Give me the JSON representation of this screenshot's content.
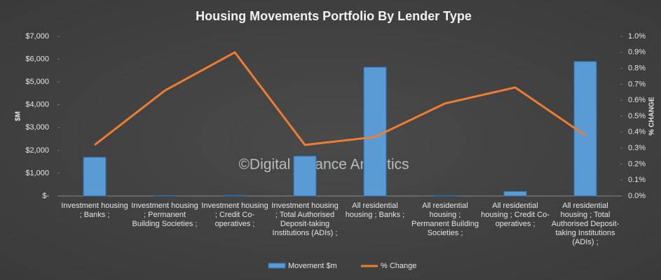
{
  "chart_data": {
    "type": "bar-line",
    "title": "Housing  Movements  Portfolio  By  Lender  Type",
    "watermark": "©Digital Finance Analytics",
    "y_label": "$M",
    "y2_label": "% CHANGE",
    "categories": [
      "Investment housing ; Banks ;",
      "Investment housing ; Permanent Building Societies ;",
      "Investment housing ; Credit Co-operatives ;",
      "Investment housing ; Total Authorised Deposit-taking Institutions (ADIs) ;",
      "All residential housing ; Banks ;",
      "All residential housing ; Permanent Building Societies ;",
      "All residential housing ; Credit Co-operatives ;",
      "All residential housing ; Total Authorised Deposit-taking Institutions (ADIs) ;"
    ],
    "series": [
      {
        "name": "Movement $m",
        "type": "bar",
        "color": "#5b9bd5",
        "values": [
          1700,
          20,
          30,
          1750,
          5650,
          20,
          200,
          5900
        ]
      },
      {
        "name": "% Change",
        "type": "line",
        "axis": "y2",
        "color": "#ed7d31",
        "values": [
          0.32,
          0.66,
          0.9,
          0.32,
          0.37,
          0.58,
          0.68,
          0.38
        ]
      }
    ],
    "ylim": [
      0,
      7000
    ],
    "yticks": [
      {
        "value": 0,
        "label": "$-"
      },
      {
        "value": 1000,
        "label": "$1,000"
      },
      {
        "value": 2000,
        "label": "$2,000"
      },
      {
        "value": 3000,
        "label": "$3,000"
      },
      {
        "value": 4000,
        "label": "$4,000"
      },
      {
        "value": 5000,
        "label": "$5,000"
      },
      {
        "value": 6000,
        "label": "$6,000"
      },
      {
        "value": 7000,
        "label": "$7,000"
      }
    ],
    "y2lim": [
      0,
      1
    ],
    "y2ticks": [
      {
        "value": 0,
        "label": "0.0%"
      },
      {
        "value": 0.1,
        "label": "0.1%"
      },
      {
        "value": 0.2,
        "label": "0.2%"
      },
      {
        "value": 0.3,
        "label": "0.3%"
      },
      {
        "value": 0.4,
        "label": "0.4%"
      },
      {
        "value": 0.5,
        "label": "0.5%"
      },
      {
        "value": 0.6,
        "label": "0.6%"
      },
      {
        "value": 0.7,
        "label": "0.7%"
      },
      {
        "value": 0.8,
        "label": "0.8%"
      },
      {
        "value": 0.9,
        "label": "0.9%"
      },
      {
        "value": 1,
        "label": "1.0%"
      }
    ]
  }
}
